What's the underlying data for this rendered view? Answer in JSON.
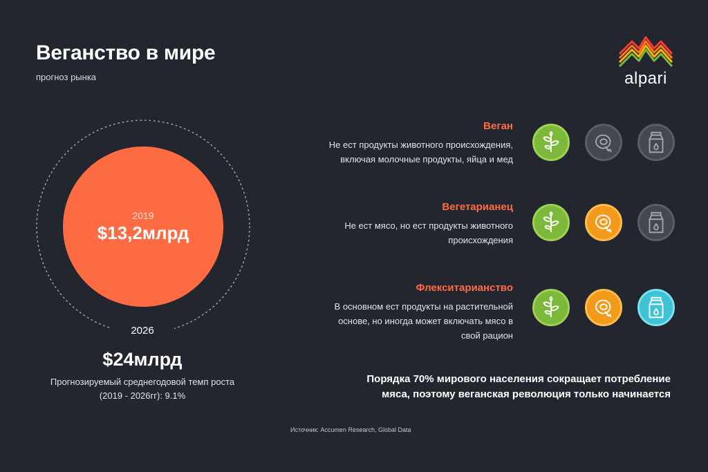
{
  "header": {
    "title": "Веганство в мире",
    "subtitle": "прогноз рынка"
  },
  "brand": {
    "name": "alpari",
    "logo_colors": [
      "#ff3b2f",
      "#ff7a1a",
      "#ffb400",
      "#7ab93b"
    ]
  },
  "market": {
    "year_now": "2019",
    "value_now": "$13,2млрд",
    "year_future": "2026",
    "value_future": "$24млрд",
    "growth_line1": "Прогнозируемый среднегодовой темп роста",
    "growth_line2": "(2019 - 2026гг): 9.1%"
  },
  "diets": [
    {
      "name": "Веган",
      "desc_lines": [
        "Не ест продукты животного происхождения,",
        "включая молочные продукты, яйца и мед"
      ],
      "icons": [
        {
          "icon": "plant-icon",
          "active": true,
          "color": "#7cb93a"
        },
        {
          "icon": "meat-icon",
          "active": false,
          "color": "#444650"
        },
        {
          "icon": "milk-icon",
          "active": false,
          "color": "#444650"
        }
      ]
    },
    {
      "name": "Вегетарианец",
      "desc_lines": [
        "Не ест мясо, но ест продукты животного",
        "происхождения"
      ],
      "icons": [
        {
          "icon": "plant-icon",
          "active": true,
          "color": "#7cb93a"
        },
        {
          "icon": "meat-icon",
          "active": true,
          "color": "#f29a1c"
        },
        {
          "icon": "milk-icon",
          "active": false,
          "color": "#444650"
        }
      ]
    },
    {
      "name": "Флекситарианство",
      "desc_lines": [
        "В основном ест продукты на растительной",
        "основе, но иногда может включать мясо в",
        "свой рацион"
      ],
      "icons": [
        {
          "icon": "plant-icon",
          "active": true,
          "color": "#7cb93a"
        },
        {
          "icon": "meat-icon",
          "active": true,
          "color": "#f29a1c"
        },
        {
          "icon": "milk-icon",
          "active": true,
          "color": "#3fc2d5"
        }
      ]
    }
  ],
  "conclusion": {
    "line1": "Порядка 70% мирового населения сокращает потребление",
    "line2": "мяса, поэтому веганская революция только начинается"
  },
  "source": "Источник: Accumen Research, Global Data",
  "colors": {
    "background": "#24262f",
    "accent": "#ff6b43"
  }
}
